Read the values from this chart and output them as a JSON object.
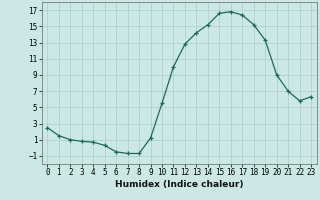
{
  "x": [
    0,
    1,
    2,
    3,
    4,
    5,
    6,
    7,
    8,
    9,
    10,
    11,
    12,
    13,
    14,
    15,
    16,
    17,
    18,
    19,
    20,
    21,
    22,
    23
  ],
  "y": [
    2.5,
    1.5,
    1.0,
    0.8,
    0.7,
    0.3,
    -0.5,
    -0.7,
    -0.7,
    1.2,
    5.5,
    10.0,
    12.8,
    14.2,
    15.2,
    16.6,
    16.8,
    16.4,
    15.2,
    13.3,
    9.0,
    7.0,
    5.8,
    6.3
  ],
  "line_color": "#1a6b5a",
  "marker": "+",
  "bg_color": "#cce8e4",
  "grid_color": "#aacfcb",
  "xlabel": "Humidex (Indice chaleur)",
  "xlim": [
    -0.5,
    23.5
  ],
  "ylim": [
    -2,
    18
  ],
  "yticks": [
    -1,
    1,
    3,
    5,
    7,
    9,
    11,
    13,
    15,
    17
  ],
  "xticks": [
    0,
    1,
    2,
    3,
    4,
    5,
    6,
    7,
    8,
    9,
    10,
    11,
    12,
    13,
    14,
    15,
    16,
    17,
    18,
    19,
    20,
    21,
    22,
    23
  ],
  "tick_fontsize": 5.5,
  "xlabel_fontsize": 6.5,
  "linewidth": 0.9,
  "markersize": 2.8
}
